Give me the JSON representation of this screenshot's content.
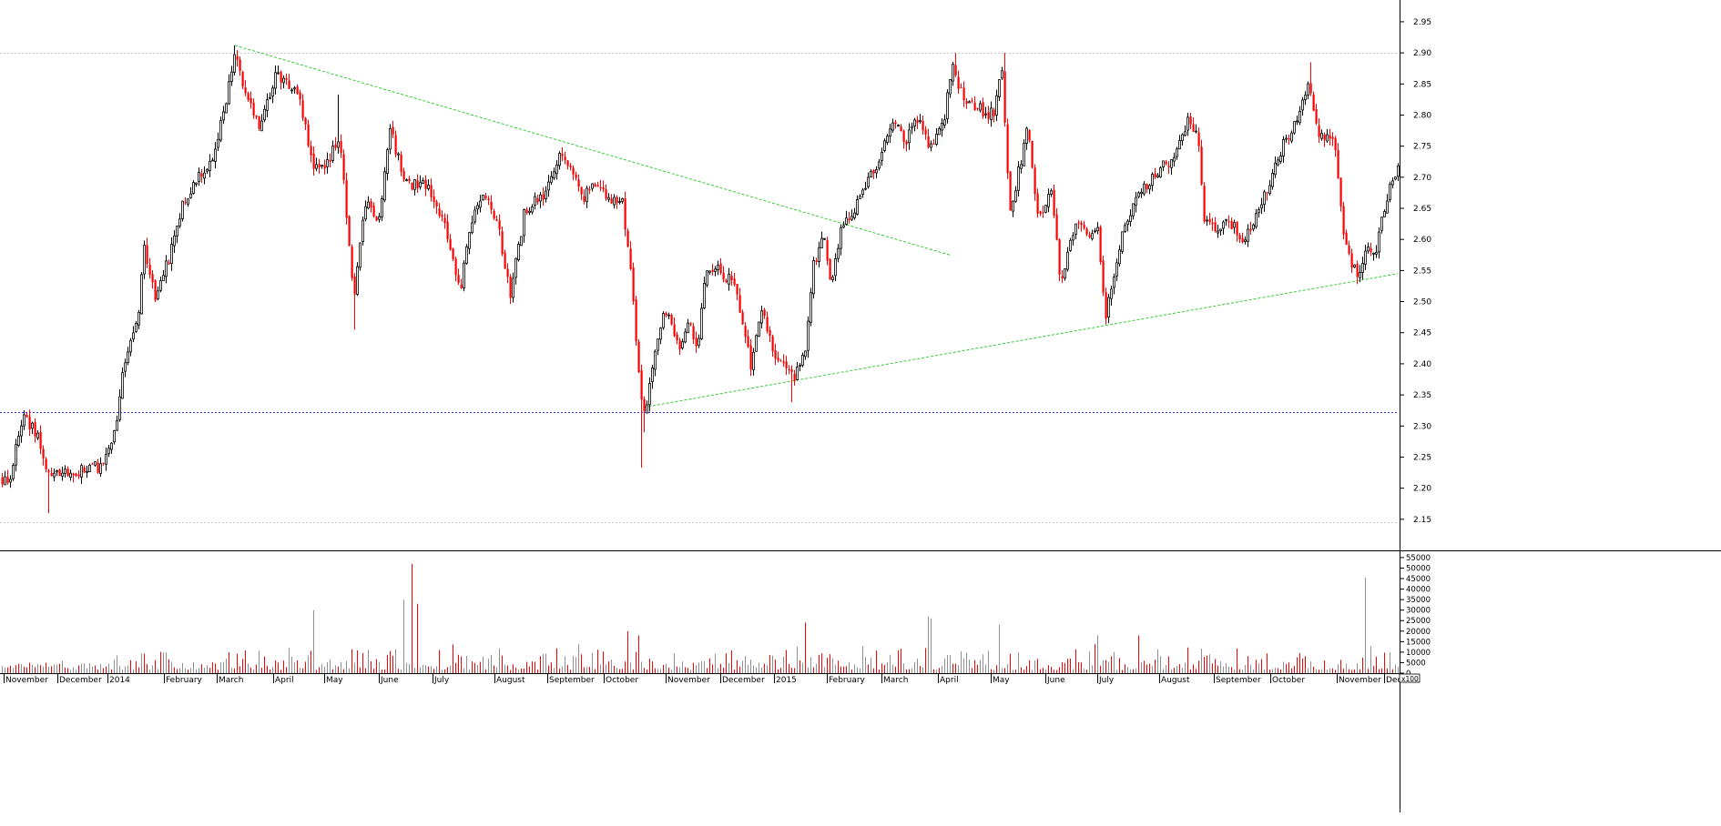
{
  "chart_data": {
    "type": "candlestick",
    "price_axis": {
      "ticks": [
        "2.95",
        "2.90",
        "2.85",
        "2.80",
        "2.75",
        "2.70",
        "2.65",
        "2.60",
        "2.55",
        "2.50",
        "2.45",
        "2.40",
        "2.35",
        "2.30",
        "2.25",
        "2.20",
        "2.15"
      ],
      "range": [
        2.1,
        2.985
      ]
    },
    "volume_axis": {
      "ticks": [
        "55000",
        "50000",
        "45000",
        "40000",
        "35000",
        "30000",
        "25000",
        "20000",
        "15000",
        "10000",
        "5000",
        "0"
      ],
      "range": [
        0,
        58000
      ]
    },
    "x_axis": {
      "labels": [
        "November",
        "December",
        "2014",
        "February",
        "March",
        "April",
        "May",
        "June",
        "July",
        "August",
        "September",
        "October",
        "November",
        "December",
        "2015",
        "February",
        "March",
        "April",
        "May",
        "June",
        "July",
        "August",
        "September",
        "October",
        "November",
        "Dec"
      ],
      "label_positions": [
        6,
        65,
        120,
        182,
        240,
        302,
        358,
        418,
        477,
        545,
        603,
        665,
        733,
        793,
        852,
        910,
        970,
        1032,
        1090,
        1150,
        1207,
        1275,
        1335,
        1397,
        1470,
        1522
      ],
      "end_label": "x100"
    },
    "horizontal_lines": [
      {
        "price": 2.9,
        "style": "dotted",
        "color": "#c8c8c8"
      },
      {
        "price": 2.322,
        "style": "dotted",
        "color": "#3333ff"
      },
      {
        "price": 2.145,
        "style": "dotted",
        "color": "#c8c8c8"
      }
    ],
    "trendlines": [
      {
        "from": {
          "day": 258,
          "price": 2.912
        },
        "to": {
          "day": 1043,
          "price": 2.575
        },
        "color": "#33cc33"
      },
      {
        "from": {
          "day": 707,
          "price": 2.33
        },
        "to": {
          "day": 1535,
          "price": 2.545
        },
        "color": "#33cc33"
      }
    ],
    "anchors": [
      [
        0,
        2.215
      ],
      [
        10,
        2.215
      ],
      [
        25,
        2.315
      ],
      [
        40,
        2.285
      ],
      [
        52,
        2.22
      ],
      [
        80,
        2.225
      ],
      [
        110,
        2.235
      ],
      [
        128,
        2.3
      ],
      [
        135,
        2.39
      ],
      [
        145,
        2.45
      ],
      [
        152,
        2.48
      ],
      [
        158,
        2.59
      ],
      [
        170,
        2.505
      ],
      [
        185,
        2.57
      ],
      [
        200,
        2.66
      ],
      [
        215,
        2.695
      ],
      [
        232,
        2.73
      ],
      [
        245,
        2.8
      ],
      [
        258,
        2.905
      ],
      [
        270,
        2.83
      ],
      [
        285,
        2.78
      ],
      [
        302,
        2.865
      ],
      [
        325,
        2.845
      ],
      [
        345,
        2.71
      ],
      [
        360,
        2.72
      ],
      [
        372,
        2.77
      ],
      [
        388,
        2.5
      ],
      [
        402,
        2.67
      ],
      [
        415,
        2.62
      ],
      [
        428,
        2.775
      ],
      [
        445,
        2.69
      ],
      [
        470,
        2.69
      ],
      [
        490,
        2.61
      ],
      [
        505,
        2.52
      ],
      [
        515,
        2.62
      ],
      [
        530,
        2.67
      ],
      [
        545,
        2.63
      ],
      [
        560,
        2.51
      ],
      [
        575,
        2.64
      ],
      [
        600,
        2.68
      ],
      [
        615,
        2.745
      ],
      [
        625,
        2.72
      ],
      [
        640,
        2.665
      ],
      [
        655,
        2.695
      ],
      [
        670,
        2.66
      ],
      [
        683,
        2.66
      ],
      [
        695,
        2.51
      ],
      [
        702,
        2.36
      ],
      [
        708,
        2.32
      ],
      [
        720,
        2.42
      ],
      [
        730,
        2.49
      ],
      [
        745,
        2.42
      ],
      [
        755,
        2.47
      ],
      [
        765,
        2.42
      ],
      [
        775,
        2.55
      ],
      [
        790,
        2.55
      ],
      [
        805,
        2.53
      ],
      [
        815,
        2.47
      ],
      [
        825,
        2.39
      ],
      [
        835,
        2.49
      ],
      [
        850,
        2.42
      ],
      [
        862,
        2.39
      ],
      [
        872,
        2.375
      ],
      [
        885,
        2.43
      ],
      [
        893,
        2.56
      ],
      [
        905,
        2.61
      ],
      [
        912,
        2.53
      ],
      [
        922,
        2.61
      ],
      [
        935,
        2.64
      ],
      [
        950,
        2.69
      ],
      [
        965,
        2.73
      ],
      [
        980,
        2.79
      ],
      [
        995,
        2.76
      ],
      [
        1010,
        2.8
      ],
      [
        1020,
        2.74
      ],
      [
        1035,
        2.78
      ],
      [
        1045,
        2.88
      ],
      [
        1060,
        2.82
      ],
      [
        1075,
        2.81
      ],
      [
        1090,
        2.8
      ],
      [
        1100,
        2.87
      ],
      [
        1108,
        2.64
      ],
      [
        1120,
        2.72
      ],
      [
        1128,
        2.78
      ],
      [
        1140,
        2.63
      ],
      [
        1155,
        2.68
      ],
      [
        1165,
        2.52
      ],
      [
        1175,
        2.6
      ],
      [
        1185,
        2.64
      ],
      [
        1195,
        2.6
      ],
      [
        1205,
        2.61
      ],
      [
        1213,
        2.47
      ],
      [
        1220,
        2.52
      ],
      [
        1230,
        2.6
      ],
      [
        1245,
        2.66
      ],
      [
        1260,
        2.69
      ],
      [
        1275,
        2.72
      ],
      [
        1290,
        2.73
      ],
      [
        1305,
        2.8
      ],
      [
        1315,
        2.76
      ],
      [
        1322,
        2.63
      ],
      [
        1335,
        2.62
      ],
      [
        1350,
        2.63
      ],
      [
        1365,
        2.6
      ],
      [
        1380,
        2.64
      ],
      [
        1395,
        2.7
      ],
      [
        1408,
        2.75
      ],
      [
        1420,
        2.78
      ],
      [
        1435,
        2.85
      ],
      [
        1450,
        2.76
      ],
      [
        1465,
        2.77
      ],
      [
        1475,
        2.6
      ],
      [
        1485,
        2.56
      ],
      [
        1492,
        2.54
      ],
      [
        1500,
        2.59
      ],
      [
        1510,
        2.58
      ],
      [
        1520,
        2.65
      ],
      [
        1528,
        2.7
      ],
      [
        1535,
        2.71
      ]
    ],
    "wicks": [
      {
        "day": 53,
        "low": 2.16
      },
      {
        "day": 388,
        "low": 2.455
      },
      {
        "day": 370,
        "high": 2.833
      },
      {
        "day": 703,
        "low": 2.233
      },
      {
        "day": 707,
        "low": 2.29
      },
      {
        "day": 258,
        "high": 2.912
      },
      {
        "day": 869,
        "low": 2.338
      },
      {
        "day": 1048,
        "high": 2.9
      },
      {
        "day": 1102,
        "high": 2.9
      },
      {
        "day": 1439,
        "high": 2.885
      },
      {
        "day": 1490,
        "low": 2.528
      }
    ],
    "volume_spikes": [
      {
        "day": 343,
        "value": 30000
      },
      {
        "day": 443,
        "value": 35000
      },
      {
        "day": 451,
        "value": 52000
      },
      {
        "day": 459,
        "value": 33000
      },
      {
        "day": 688,
        "value": 20000
      },
      {
        "day": 700,
        "value": 18000
      },
      {
        "day": 883,
        "value": 24000
      },
      {
        "day": 1018,
        "value": 27000
      },
      {
        "day": 1021,
        "value": 26000
      },
      {
        "day": 1098,
        "value": 23000
      },
      {
        "day": 1206,
        "value": 18000
      },
      {
        "day": 1250,
        "value": 18000
      },
      {
        "day": 1500,
        "value": 45500
      }
    ],
    "colors": {
      "up": "#000000",
      "down": "#ff0000",
      "volume_up": "#909090",
      "volume_down": "#ff0000"
    }
  }
}
